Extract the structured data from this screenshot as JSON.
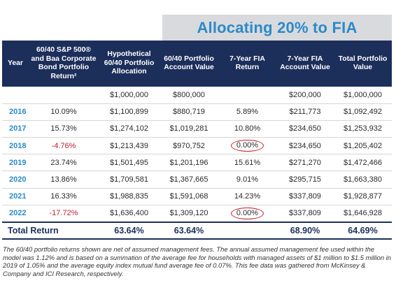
{
  "banner_title": "Allocating 20% to FIA",
  "headers": [
    "Year",
    "60/40 S&P 500® and Baa Corporate Bond Portfolio Return²",
    "Hypothetical 60/40 Portfolio Allocation",
    "60/40 Portfolio Account Value",
    "7-Year FIA Return",
    "7-Year FIA Account Value",
    "Total Portfolio Value"
  ],
  "rows": [
    {
      "year": "",
      "ret": "",
      "alloc": "$1,000,000",
      "acct": "$800,000",
      "fia_ret": "",
      "fia_val": "$200,000",
      "total": "$1,000,000"
    },
    {
      "year": "2016",
      "ret": "10.09%",
      "alloc": "$1,100,899",
      "acct": "$880,719",
      "fia_ret": "5.89%",
      "fia_val": "$211,773",
      "total": "$1,092,492"
    },
    {
      "year": "2017",
      "ret": "15.73%",
      "alloc": "$1,274,102",
      "acct": "$1,019,281",
      "fia_ret": "10.80%",
      "fia_val": "$234,650",
      "total": "$1,253,932"
    },
    {
      "year": "2018",
      "ret": "-4.76%",
      "alloc": "$1,213,439",
      "acct": "$970,752",
      "fia_ret": "0.00%",
      "fia_val": "$234,650",
      "total": "$1,205,402"
    },
    {
      "year": "2019",
      "ret": "23.74%",
      "alloc": "$1,501,495",
      "acct": "$1,201,196",
      "fia_ret": "15.61%",
      "fia_val": "$271,270",
      "total": "$1,472,466"
    },
    {
      "year": "2020",
      "ret": "13.86%",
      "alloc": "$1,709,581",
      "acct": "$1,367,665",
      "fia_ret": "9.01%",
      "fia_val": "$295,715",
      "total": "$1,663,380"
    },
    {
      "year": "2021",
      "ret": "16.33%",
      "alloc": "$1,988,835",
      "acct": "$1,591,068",
      "fia_ret": "14.23%",
      "fia_val": "$337,809",
      "total": "$1,928,877"
    },
    {
      "year": "2022",
      "ret": "-17.72%",
      "alloc": "$1,636,400",
      "acct": "$1,309,120",
      "fia_ret": "0.00%",
      "fia_val": "$337,809",
      "total": "$1,646,928"
    }
  ],
  "total_row": {
    "label": "Total Return",
    "alloc": "63.64%",
    "acct": "63.64%",
    "fia_val": "68.90%",
    "total": "64.69%"
  },
  "footnote": "The 60/40 portfolio returns shown are net of assumed management fees. The annual assumed management fee used within the model was 1.12% and is based on a summation of the average fee for households with managed assets of $1 million to $1.5 million in 2019 of 1.05% and the average equity index mutual fund average fee of 0.07%. This fee data was gathered from McKinsey & Company and ICI Research, respectively.",
  "colors": {
    "header_bg": "#1c2e5a",
    "accent_blue": "#2b8ac9",
    "negative_red": "#c41f2c",
    "banner_bg": "#d9dadd"
  }
}
